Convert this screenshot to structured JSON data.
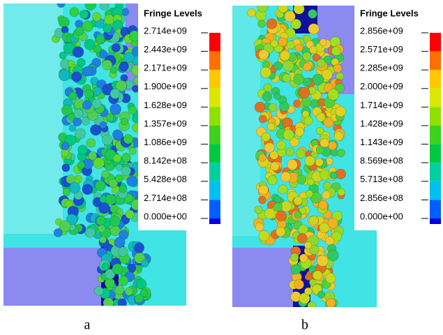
{
  "panels": [
    {
      "legend": {
        "title": "Fringe Levels",
        "labels": [
          "2.714e+09",
          "2.443e+09",
          "2.171e+09",
          "1.900e+09",
          "1.628e+09",
          "1.357e+09",
          "1.086e+09",
          "8.142e+08",
          "5.428e+08",
          "2.714e+08",
          "0.000e+00"
        ]
      },
      "caption": "a"
    },
    {
      "legend": {
        "title": "Fringe Levels",
        "labels": [
          "2.856e+09",
          "2.571e+09",
          "2.285e+09",
          "2.000e+09",
          "1.714e+09",
          "1.428e+09",
          "1.143e+09",
          "8.569e+08",
          "5.713e+08",
          "2.856e+08",
          "0.000e+00"
        ]
      },
      "caption": "b"
    }
  ]
}
